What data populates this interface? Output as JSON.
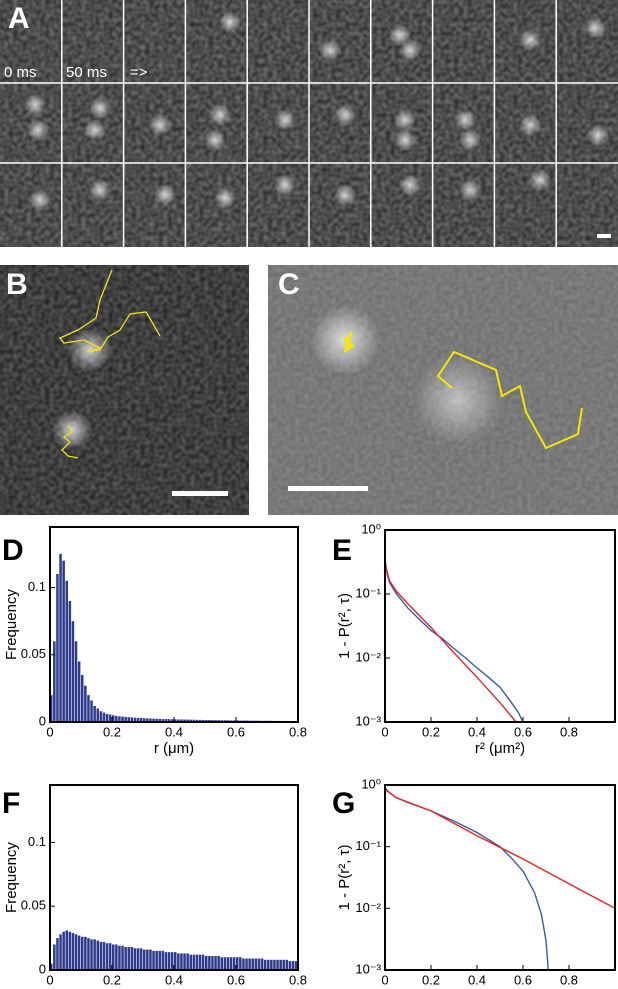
{
  "panel_labels": [
    "A",
    "B",
    "C"
  ],
  "panel_a": {
    "labels": [
      "0 ms",
      "50 ms",
      "=>"
    ]
  },
  "chart_data": [
    {
      "type": "histogram",
      "title": "D",
      "xlabel": "r (μm)",
      "ylabel": "Frequency",
      "color": "#2e3a8c",
      "xlim": [
        0,
        0.8
      ],
      "ylim": [
        0,
        0.145
      ],
      "xticks": [
        0,
        0.2,
        0.4,
        0.6,
        0.8
      ],
      "yticks": [
        0,
        0.05,
        0.1
      ],
      "bins": [
        0,
        0.01,
        0.02,
        0.03,
        0.04,
        0.05,
        0.06,
        0.07,
        0.08,
        0.09,
        0.1,
        0.11,
        0.12,
        0.13,
        0.14,
        0.15,
        0.16,
        0.17,
        0.18,
        0.19,
        0.2,
        0.21,
        0.22,
        0.23,
        0.24,
        0.25,
        0.26,
        0.27,
        0.28,
        0.29,
        0.3,
        0.31,
        0.32,
        0.33,
        0.34,
        0.35,
        0.36,
        0.37,
        0.38,
        0.39,
        0.4,
        0.41,
        0.42,
        0.43,
        0.44,
        0.45,
        0.46,
        0.47,
        0.48,
        0.49,
        0.5,
        0.51,
        0.52,
        0.53,
        0.54,
        0.55,
        0.56,
        0.57,
        0.58,
        0.59,
        0.6,
        0.61,
        0.62,
        0.63,
        0.64,
        0.65,
        0.66,
        0.67,
        0.68,
        0.69,
        0.7,
        0.71,
        0.72,
        0.73,
        0.74,
        0.75,
        0.76,
        0.77,
        0.78,
        0.79,
        0.8
      ],
      "values": [
        0.02,
        0.06,
        0.11,
        0.125,
        0.12,
        0.105,
        0.09,
        0.075,
        0.06,
        0.045,
        0.035,
        0.027,
        0.02,
        0.016,
        0.012,
        0.01,
        0.008,
        0.007,
        0.006,
        0.0055,
        0.005,
        0.0045,
        0.0042,
        0.004,
        0.0038,
        0.0036,
        0.0034,
        0.0032,
        0.003,
        0.003,
        0.0028,
        0.0027,
        0.0026,
        0.0025,
        0.0024,
        0.0023,
        0.0022,
        0.0022,
        0.0021,
        0.002,
        0.002,
        0.0019,
        0.0019,
        0.0018,
        0.0018,
        0.0017,
        0.0017,
        0.0016,
        0.0016,
        0.0015,
        0.0015,
        0.0015,
        0.0014,
        0.0014,
        0.0014,
        0.0013,
        0.0013,
        0.0013,
        0.0012,
        0.0012,
        0.0012,
        0.0011,
        0.0011,
        0.0011,
        0.001,
        0.001,
        0.001,
        0.001,
        0.0009,
        0.0009,
        0.0009,
        0.0009,
        0.0008,
        0.0008,
        0.0008,
        0.0008,
        0.0007,
        0.0007,
        0.0007,
        0.0007
      ]
    },
    {
      "type": "line",
      "title": "E",
      "xlabel": "r² (μm²)",
      "ylabel": "1 - P(r², τ)",
      "log_y": true,
      "xlim": [
        0,
        1
      ],
      "ylim": [
        0.001,
        1
      ],
      "xticks": [
        0,
        0.2,
        0.4,
        0.6,
        0.8
      ],
      "yticks": [
        {
          "value": 1,
          "label": "10⁰"
        },
        {
          "value": 0.1,
          "label": "10⁻¹"
        },
        {
          "value": 0.01,
          "label": "10⁻²"
        },
        {
          "value": 0.001,
          "label": "10⁻³"
        }
      ],
      "series": [
        {
          "color": "#3a5ba8",
          "x": [
            0,
            0.01,
            0.02,
            0.05,
            0.1,
            0.15,
            0.2,
            0.25,
            0.3,
            0.35,
            0.4,
            0.45,
            0.5,
            0.55,
            0.58,
            0.6
          ],
          "values": [
            0.35,
            0.2,
            0.15,
            0.1,
            0.06,
            0.04,
            0.027,
            0.02,
            0.014,
            0.01,
            0.007,
            0.005,
            0.0035,
            0.002,
            0.0014,
            0.001
          ]
        },
        {
          "color": "#e0262a",
          "x": [
            0,
            0.02,
            0.05,
            0.1,
            0.2,
            0.3,
            0.4,
            0.5,
            0.57
          ],
          "values": [
            0.3,
            0.16,
            0.11,
            0.07,
            0.03,
            0.012,
            0.005,
            0.002,
            0.001
          ]
        }
      ]
    },
    {
      "type": "histogram",
      "title": "F",
      "xlabel": "r (μm)",
      "ylabel": "Frequency",
      "color": "#2e3a8c",
      "xlim": [
        0,
        0.8
      ],
      "ylim": [
        0,
        0.145
      ],
      "xticks": [
        0,
        0.2,
        0.4,
        0.6,
        0.8
      ],
      "yticks": [
        0,
        0.05,
        0.1
      ],
      "bins": [
        0,
        0.01,
        0.02,
        0.03,
        0.04,
        0.05,
        0.06,
        0.07,
        0.08,
        0.09,
        0.1,
        0.11,
        0.12,
        0.13,
        0.14,
        0.15,
        0.16,
        0.17,
        0.18,
        0.19,
        0.2,
        0.21,
        0.22,
        0.23,
        0.24,
        0.25,
        0.26,
        0.27,
        0.28,
        0.29,
        0.3,
        0.31,
        0.32,
        0.33,
        0.34,
        0.35,
        0.36,
        0.37,
        0.38,
        0.39,
        0.4,
        0.41,
        0.42,
        0.43,
        0.44,
        0.45,
        0.46,
        0.47,
        0.48,
        0.49,
        0.5,
        0.51,
        0.52,
        0.53,
        0.54,
        0.55,
        0.56,
        0.57,
        0.58,
        0.59,
        0.6,
        0.61,
        0.62,
        0.63,
        0.64,
        0.65,
        0.66,
        0.67,
        0.68,
        0.69,
        0.7,
        0.71,
        0.72,
        0.73,
        0.74,
        0.75,
        0.76,
        0.77,
        0.78,
        0.79,
        0.8
      ],
      "values": [
        0.005,
        0.02,
        0.025,
        0.028,
        0.03,
        0.031,
        0.03,
        0.029,
        0.028,
        0.027,
        0.026,
        0.026,
        0.025,
        0.024,
        0.024,
        0.023,
        0.022,
        0.022,
        0.021,
        0.021,
        0.02,
        0.02,
        0.019,
        0.019,
        0.018,
        0.018,
        0.018,
        0.017,
        0.017,
        0.017,
        0.016,
        0.016,
        0.016,
        0.015,
        0.015,
        0.015,
        0.015,
        0.014,
        0.014,
        0.014,
        0.014,
        0.013,
        0.013,
        0.013,
        0.013,
        0.012,
        0.012,
        0.012,
        0.012,
        0.012,
        0.011,
        0.011,
        0.011,
        0.011,
        0.011,
        0.01,
        0.01,
        0.01,
        0.01,
        0.01,
        0.01,
        0.01,
        0.009,
        0.009,
        0.009,
        0.009,
        0.009,
        0.009,
        0.009,
        0.008,
        0.008,
        0.008,
        0.008,
        0.008,
        0.008,
        0.008,
        0.008,
        0.007,
        0.007,
        0.007
      ]
    },
    {
      "type": "line",
      "title": "G",
      "xlabel": "r² (μm²)",
      "ylabel": "1 - P(r², τ)",
      "log_y": true,
      "xlim": [
        0,
        1
      ],
      "ylim": [
        0.001,
        1
      ],
      "xticks": [
        0,
        0.2,
        0.4,
        0.6,
        0.8
      ],
      "yticks": [
        {
          "value": 1,
          "label": "10⁰"
        },
        {
          "value": 0.1,
          "label": "10⁻¹"
        },
        {
          "value": 0.01,
          "label": "10⁻²"
        },
        {
          "value": 0.001,
          "label": "10⁻³"
        }
      ],
      "series": [
        {
          "color": "#3a5ba8",
          "x": [
            0,
            0.02,
            0.05,
            0.1,
            0.2,
            0.3,
            0.4,
            0.5,
            0.55,
            0.6,
            0.65,
            0.68,
            0.7,
            0.71
          ],
          "values": [
            0.9,
            0.75,
            0.62,
            0.52,
            0.38,
            0.26,
            0.17,
            0.1,
            0.065,
            0.04,
            0.018,
            0.008,
            0.003,
            0.001
          ]
        },
        {
          "color": "#e0262a",
          "x": [
            0,
            0.05,
            0.2,
            0.4,
            0.6,
            0.8,
            1
          ],
          "values": [
            0.85,
            0.62,
            0.38,
            0.15,
            0.063,
            0.025,
            0.01
          ]
        }
      ]
    }
  ]
}
